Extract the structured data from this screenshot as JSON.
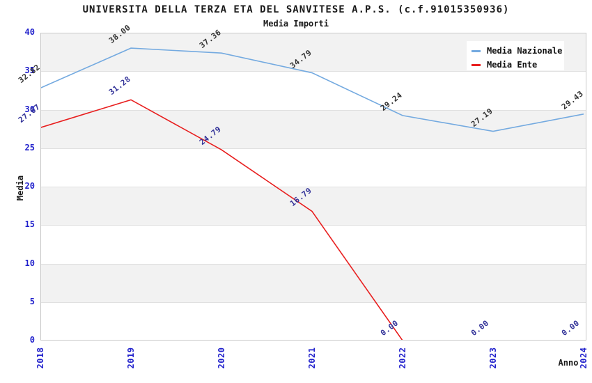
{
  "chart_data": {
    "type": "line",
    "title": "UNIVERSITA DELLA TERZA ETA DEL SANVITESE A.P.S. (c.f.91015350936)",
    "subtitle": "Media Importi",
    "xlabel": "Anno",
    "ylabel": "Media",
    "categories": [
      "2018",
      "2019",
      "2020",
      "2021",
      "2022",
      "2023",
      "2024"
    ],
    "ylim": [
      0,
      40
    ],
    "ytick_step": 5,
    "yticks": [
      0,
      5,
      10,
      15,
      20,
      25,
      30,
      35,
      40
    ],
    "grid": "horizontal-gridlines-with-alternating-bands",
    "legend_position": "top-right",
    "series": [
      {
        "name": "Media Nazionale",
        "color": "#74aae0",
        "label_color": "#333333",
        "values": [
          32.82,
          38.0,
          37.36,
          34.79,
          29.24,
          27.19,
          29.43
        ],
        "labels": [
          "32.82",
          "38.00",
          "37.36",
          "34.79",
          "29.24",
          "27.19",
          "29.43"
        ]
      },
      {
        "name": "Media Ente",
        "color": "#e81e1e",
        "label_color": "#333399",
        "values": [
          27.67,
          31.28,
          24.79,
          16.79,
          0,
          0,
          0
        ],
        "labels": [
          "27.67",
          "31.28",
          "24.79",
          "16.79",
          "0.00",
          "0.00",
          "0.00"
        ]
      }
    ],
    "colors": {
      "tick_label": "#2222cc",
      "axis_label": "#1a1a1a",
      "band": "#f2f2f2",
      "gridline": "#e0e0e0",
      "plot_border": "#c8c8c8",
      "background": "#ffffff"
    }
  }
}
